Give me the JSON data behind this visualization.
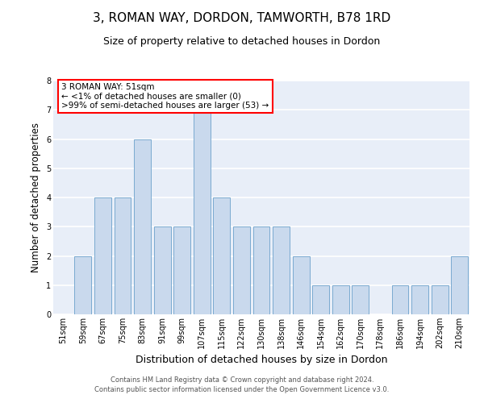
{
  "title": "3, ROMAN WAY, DORDON, TAMWORTH, B78 1RD",
  "subtitle": "Size of property relative to detached houses in Dordon",
  "xlabel": "Distribution of detached houses by size in Dordon",
  "ylabel": "Number of detached properties",
  "categories": [
    "51sqm",
    "59sqm",
    "67sqm",
    "75sqm",
    "83sqm",
    "91sqm",
    "99sqm",
    "107sqm",
    "115sqm",
    "122sqm",
    "130sqm",
    "138sqm",
    "146sqm",
    "154sqm",
    "162sqm",
    "170sqm",
    "178sqm",
    "186sqm",
    "194sqm",
    "202sqm",
    "210sqm"
  ],
  "values": [
    0,
    2,
    4,
    4,
    6,
    3,
    3,
    7,
    4,
    3,
    3,
    3,
    2,
    1,
    1,
    1,
    0,
    1,
    1,
    1,
    2
  ],
  "bar_color": "#c9d9ed",
  "bar_edge_color": "#7aaad0",
  "ylim": [
    0,
    8
  ],
  "yticks": [
    0,
    1,
    2,
    3,
    4,
    5,
    6,
    7,
    8
  ],
  "annotation_box_title": "3 ROMAN WAY: 51sqm",
  "annotation_line2": "← <1% of detached houses are smaller (0)",
  "annotation_line3": ">99% of semi-detached houses are larger (53) →",
  "annotation_box_color": "#ff0000",
  "bg_color": "#e8eef8",
  "footer_line1": "Contains HM Land Registry data © Crown copyright and database right 2024.",
  "footer_line2": "Contains public sector information licensed under the Open Government Licence v3.0.",
  "title_fontsize": 11,
  "subtitle_fontsize": 9,
  "ylabel_fontsize": 8.5,
  "xlabel_fontsize": 9,
  "tick_fontsize": 7,
  "annotation_fontsize": 7.5,
  "footer_fontsize": 6
}
